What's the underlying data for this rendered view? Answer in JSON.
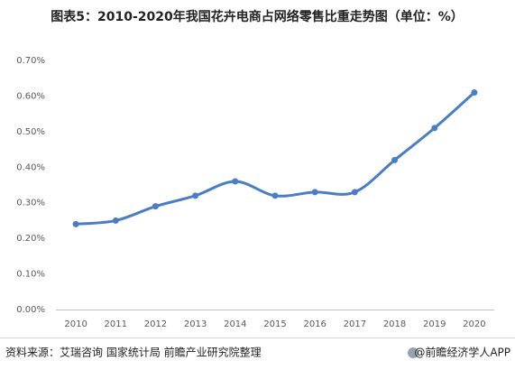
{
  "chart_data": {
    "type": "line",
    "title": "图表5：2010-2020年我国花卉电商占网络零售比重走势图（单位：%）",
    "categories": [
      "2010",
      "2011",
      "2012",
      "2013",
      "2014",
      "2015",
      "2016",
      "2017",
      "2018",
      "2019",
      "2020"
    ],
    "series": [
      {
        "name": "占网络零售比重",
        "color": "#4a7ec4",
        "values": [
          0.24,
          0.25,
          0.29,
          0.32,
          0.36,
          0.32,
          0.33,
          0.33,
          0.42,
          0.51,
          0.61
        ]
      }
    ],
    "ylim": [
      0,
      0.7
    ],
    "yticks": [
      {
        "value": 0,
        "label": "0.00%"
      },
      {
        "value": 0.1,
        "label": "0.10%"
      },
      {
        "value": 0.2,
        "label": "0.20%"
      },
      {
        "value": 0.3,
        "label": "0.30%"
      },
      {
        "value": 0.4,
        "label": "0.40%"
      },
      {
        "value": 0.5,
        "label": "0.50%"
      },
      {
        "value": 0.6,
        "label": "0.60%"
      },
      {
        "value": 0.7,
        "label": "0.70%"
      }
    ],
    "grid": false
  },
  "footer": {
    "source": "资料来源：艾瑞咨询 国家统计局 前瞻产业研究院整理",
    "brand": "@前瞻经济学人APP"
  }
}
